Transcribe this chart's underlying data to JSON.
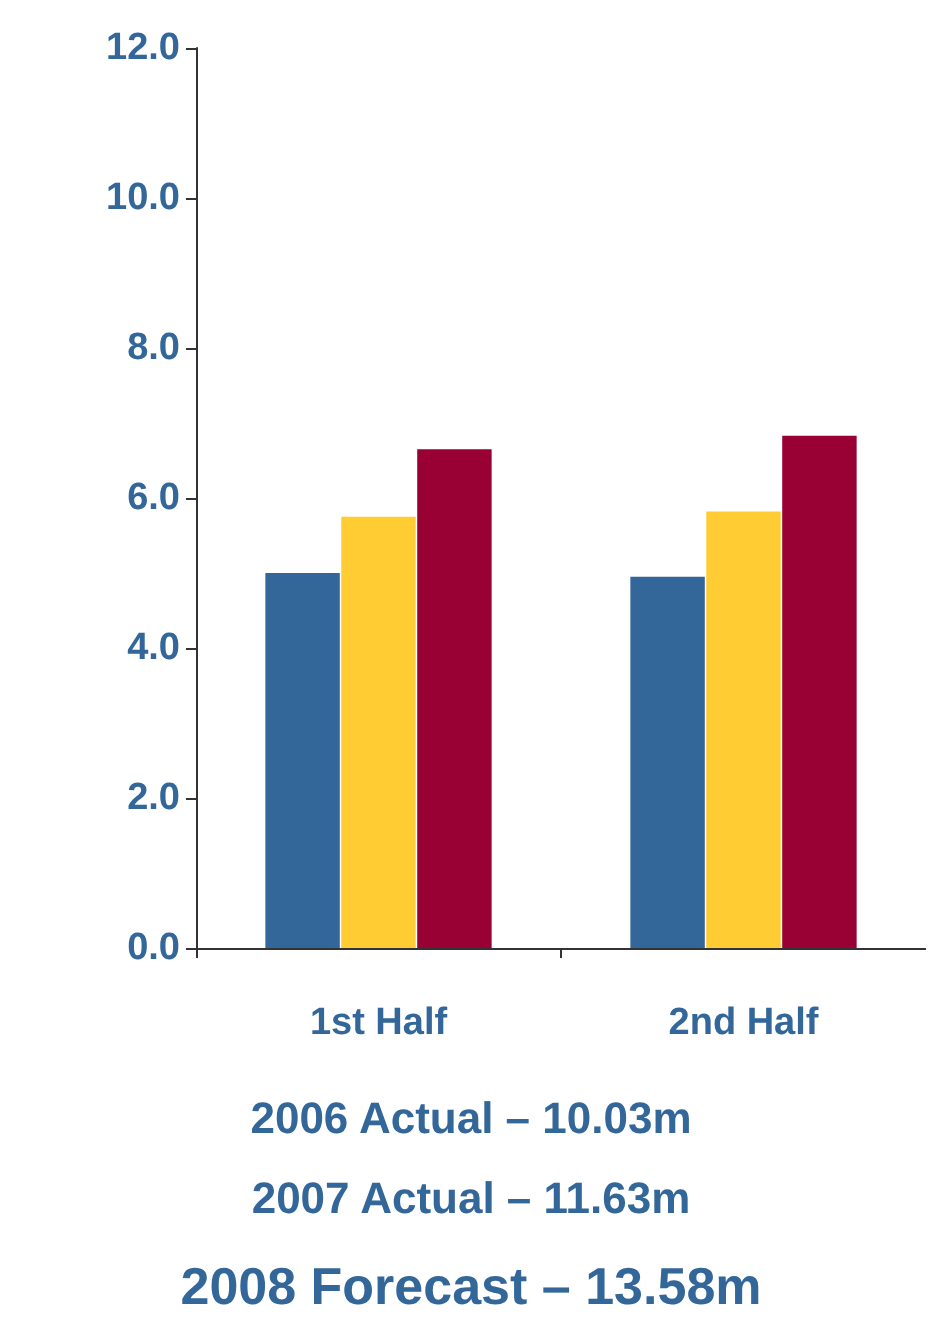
{
  "chart_data": {
    "type": "bar",
    "categories": [
      "1st Half",
      "2nd Half"
    ],
    "series": [
      {
        "color": "#336699",
        "values": [
          5.0,
          4.95
        ]
      },
      {
        "color": "#ffcc33",
        "values": [
          5.75,
          5.82
        ]
      },
      {
        "color": "#990033",
        "values": [
          6.65,
          6.83
        ]
      }
    ],
    "ylim": [
      0,
      12
    ],
    "yticks": [
      {
        "value": 0,
        "label": "0.0"
      },
      {
        "value": 2,
        "label": "2.0"
      },
      {
        "value": 4,
        "label": "4.0"
      },
      {
        "value": 6,
        "label": "6.0"
      },
      {
        "value": 8,
        "label": "8.0"
      },
      {
        "value": 10,
        "label": "10.0"
      },
      {
        "value": 12,
        "label": "12.0"
      }
    ],
    "grid": false,
    "annotations": [
      "2006 Actual – 10.03m",
      "2007 Actual – 11.63m",
      "2008 Forecast – 13.58m"
    ]
  }
}
